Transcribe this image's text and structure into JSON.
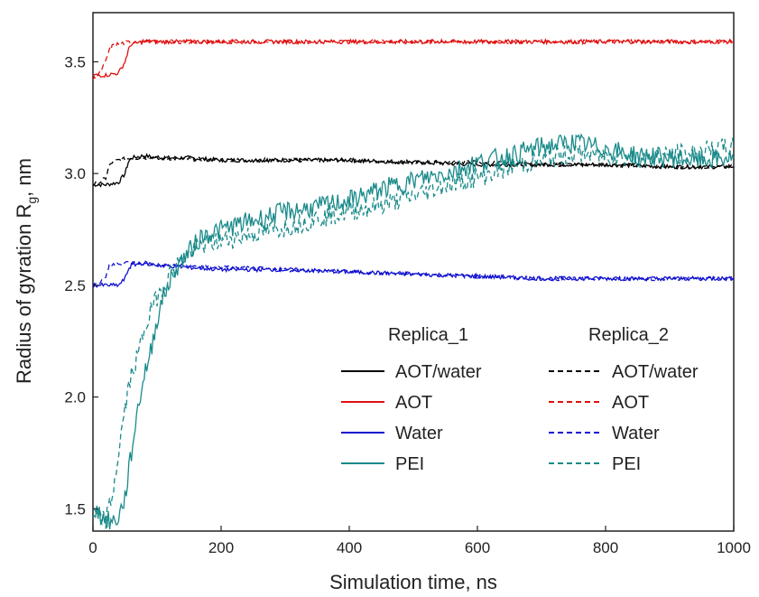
{
  "chart_data": {
    "type": "line",
    "title": "",
    "xlabel": "Simulation time, ns",
    "ylabel_main": "Radius of gyration R",
    "ylabel_sub": "g",
    "ylabel_tail": ", nm",
    "xlim": [
      0,
      1000
    ],
    "ylim": [
      1.4,
      3.72
    ],
    "xticks": [
      0,
      200,
      400,
      600,
      800,
      1000
    ],
    "yticks": [
      1.5,
      2.0,
      2.5,
      3.0,
      3.5
    ],
    "ytick_labels": [
      "1.5",
      "2.0",
      "2.5",
      "3.0",
      "3.5"
    ],
    "grid": false,
    "legend": {
      "placement": "lower-right",
      "column_headers": [
        "Replica_1",
        "Replica_2"
      ]
    },
    "series": [
      {
        "name": "AOT/water",
        "replica": 1,
        "color": "#000000",
        "dash": "solid",
        "x": [
          0,
          20,
          40,
          50,
          55,
          60,
          80,
          100,
          150,
          200,
          300,
          400,
          500,
          600,
          700,
          800,
          900,
          1000
        ],
        "y": [
          2.95,
          2.95,
          2.96,
          3.0,
          3.05,
          3.07,
          3.08,
          3.07,
          3.07,
          3.06,
          3.06,
          3.06,
          3.05,
          3.04,
          3.04,
          3.04,
          3.03,
          3.03
        ]
      },
      {
        "name": "AOT/water",
        "replica": 2,
        "color": "#000000",
        "dash": "dashed",
        "x": [
          0,
          10,
          20,
          25,
          30,
          40,
          60,
          100,
          200,
          300,
          400,
          500,
          600,
          700,
          800,
          900,
          1000
        ],
        "y": [
          2.95,
          2.96,
          2.98,
          3.03,
          3.05,
          3.06,
          3.07,
          3.07,
          3.06,
          3.06,
          3.06,
          3.05,
          3.05,
          3.04,
          3.04,
          3.03,
          3.03
        ]
      },
      {
        "name": "AOT",
        "replica": 1,
        "color": "#e01010",
        "dash": "solid",
        "x": [
          0,
          20,
          40,
          50,
          55,
          60,
          80,
          100,
          200,
          300,
          400,
          500,
          600,
          700,
          800,
          900,
          1000
        ],
        "y": [
          3.44,
          3.44,
          3.45,
          3.5,
          3.55,
          3.58,
          3.59,
          3.59,
          3.59,
          3.59,
          3.59,
          3.59,
          3.59,
          3.59,
          3.59,
          3.59,
          3.59
        ]
      },
      {
        "name": "AOT",
        "replica": 2,
        "color": "#e01010",
        "dash": "dashed",
        "x": [
          0,
          10,
          20,
          25,
          30,
          40,
          60,
          100,
          200,
          300,
          400,
          500,
          600,
          700,
          800,
          900,
          1000
        ],
        "y": [
          3.42,
          3.45,
          3.5,
          3.55,
          3.57,
          3.58,
          3.59,
          3.59,
          3.59,
          3.59,
          3.59,
          3.59,
          3.59,
          3.59,
          3.59,
          3.59,
          3.59
        ]
      },
      {
        "name": "Water",
        "replica": 1,
        "color": "#1010d0",
        "dash": "solid",
        "x": [
          0,
          20,
          40,
          50,
          55,
          60,
          80,
          100,
          150,
          200,
          300,
          400,
          500,
          600,
          700,
          800,
          900,
          1000
        ],
        "y": [
          2.5,
          2.5,
          2.5,
          2.53,
          2.57,
          2.59,
          2.6,
          2.59,
          2.58,
          2.57,
          2.57,
          2.56,
          2.55,
          2.54,
          2.53,
          2.53,
          2.53,
          2.53
        ]
      },
      {
        "name": "Water",
        "replica": 2,
        "color": "#1010d0",
        "dash": "dashed",
        "x": [
          0,
          10,
          20,
          25,
          30,
          40,
          60,
          100,
          200,
          300,
          400,
          500,
          600,
          700,
          800,
          900,
          1000
        ],
        "y": [
          2.5,
          2.51,
          2.54,
          2.58,
          2.59,
          2.6,
          2.6,
          2.59,
          2.58,
          2.57,
          2.56,
          2.55,
          2.54,
          2.53,
          2.53,
          2.53,
          2.53
        ]
      },
      {
        "name": "PEI",
        "replica": 1,
        "color": "#1a8a8a",
        "dash": "solid",
        "x": [
          0,
          10,
          20,
          30,
          40,
          50,
          60,
          70,
          80,
          90,
          100,
          110,
          120,
          130,
          150,
          170,
          200,
          250,
          300,
          350,
          400,
          450,
          500,
          550,
          600,
          650,
          700,
          750,
          800,
          850,
          900,
          950,
          1000
        ],
        "y": [
          1.5,
          1.48,
          1.45,
          1.44,
          1.46,
          1.55,
          1.75,
          1.95,
          2.1,
          2.2,
          2.35,
          2.45,
          2.52,
          2.58,
          2.65,
          2.72,
          2.75,
          2.79,
          2.83,
          2.85,
          2.88,
          2.93,
          2.97,
          3.0,
          3.05,
          3.08,
          3.12,
          3.14,
          3.11,
          3.08,
          3.07,
          3.06,
          3.07
        ]
      },
      {
        "name": "PEI",
        "replica": 2,
        "color": "#1a8a8a",
        "dash": "dashed",
        "x": [
          0,
          10,
          20,
          30,
          40,
          50,
          60,
          70,
          80,
          90,
          100,
          120,
          140,
          170,
          200,
          250,
          300,
          350,
          400,
          450,
          500,
          550,
          600,
          650,
          700,
          750,
          800,
          850,
          900,
          950,
          1000
        ],
        "y": [
          1.48,
          1.46,
          1.45,
          1.55,
          1.75,
          1.95,
          2.1,
          2.18,
          2.3,
          2.38,
          2.45,
          2.55,
          2.62,
          2.68,
          2.7,
          2.73,
          2.76,
          2.8,
          2.83,
          2.86,
          2.9,
          2.95,
          2.98,
          3.03,
          3.06,
          3.09,
          3.08,
          3.07,
          3.08,
          3.1,
          3.12
        ]
      }
    ]
  }
}
